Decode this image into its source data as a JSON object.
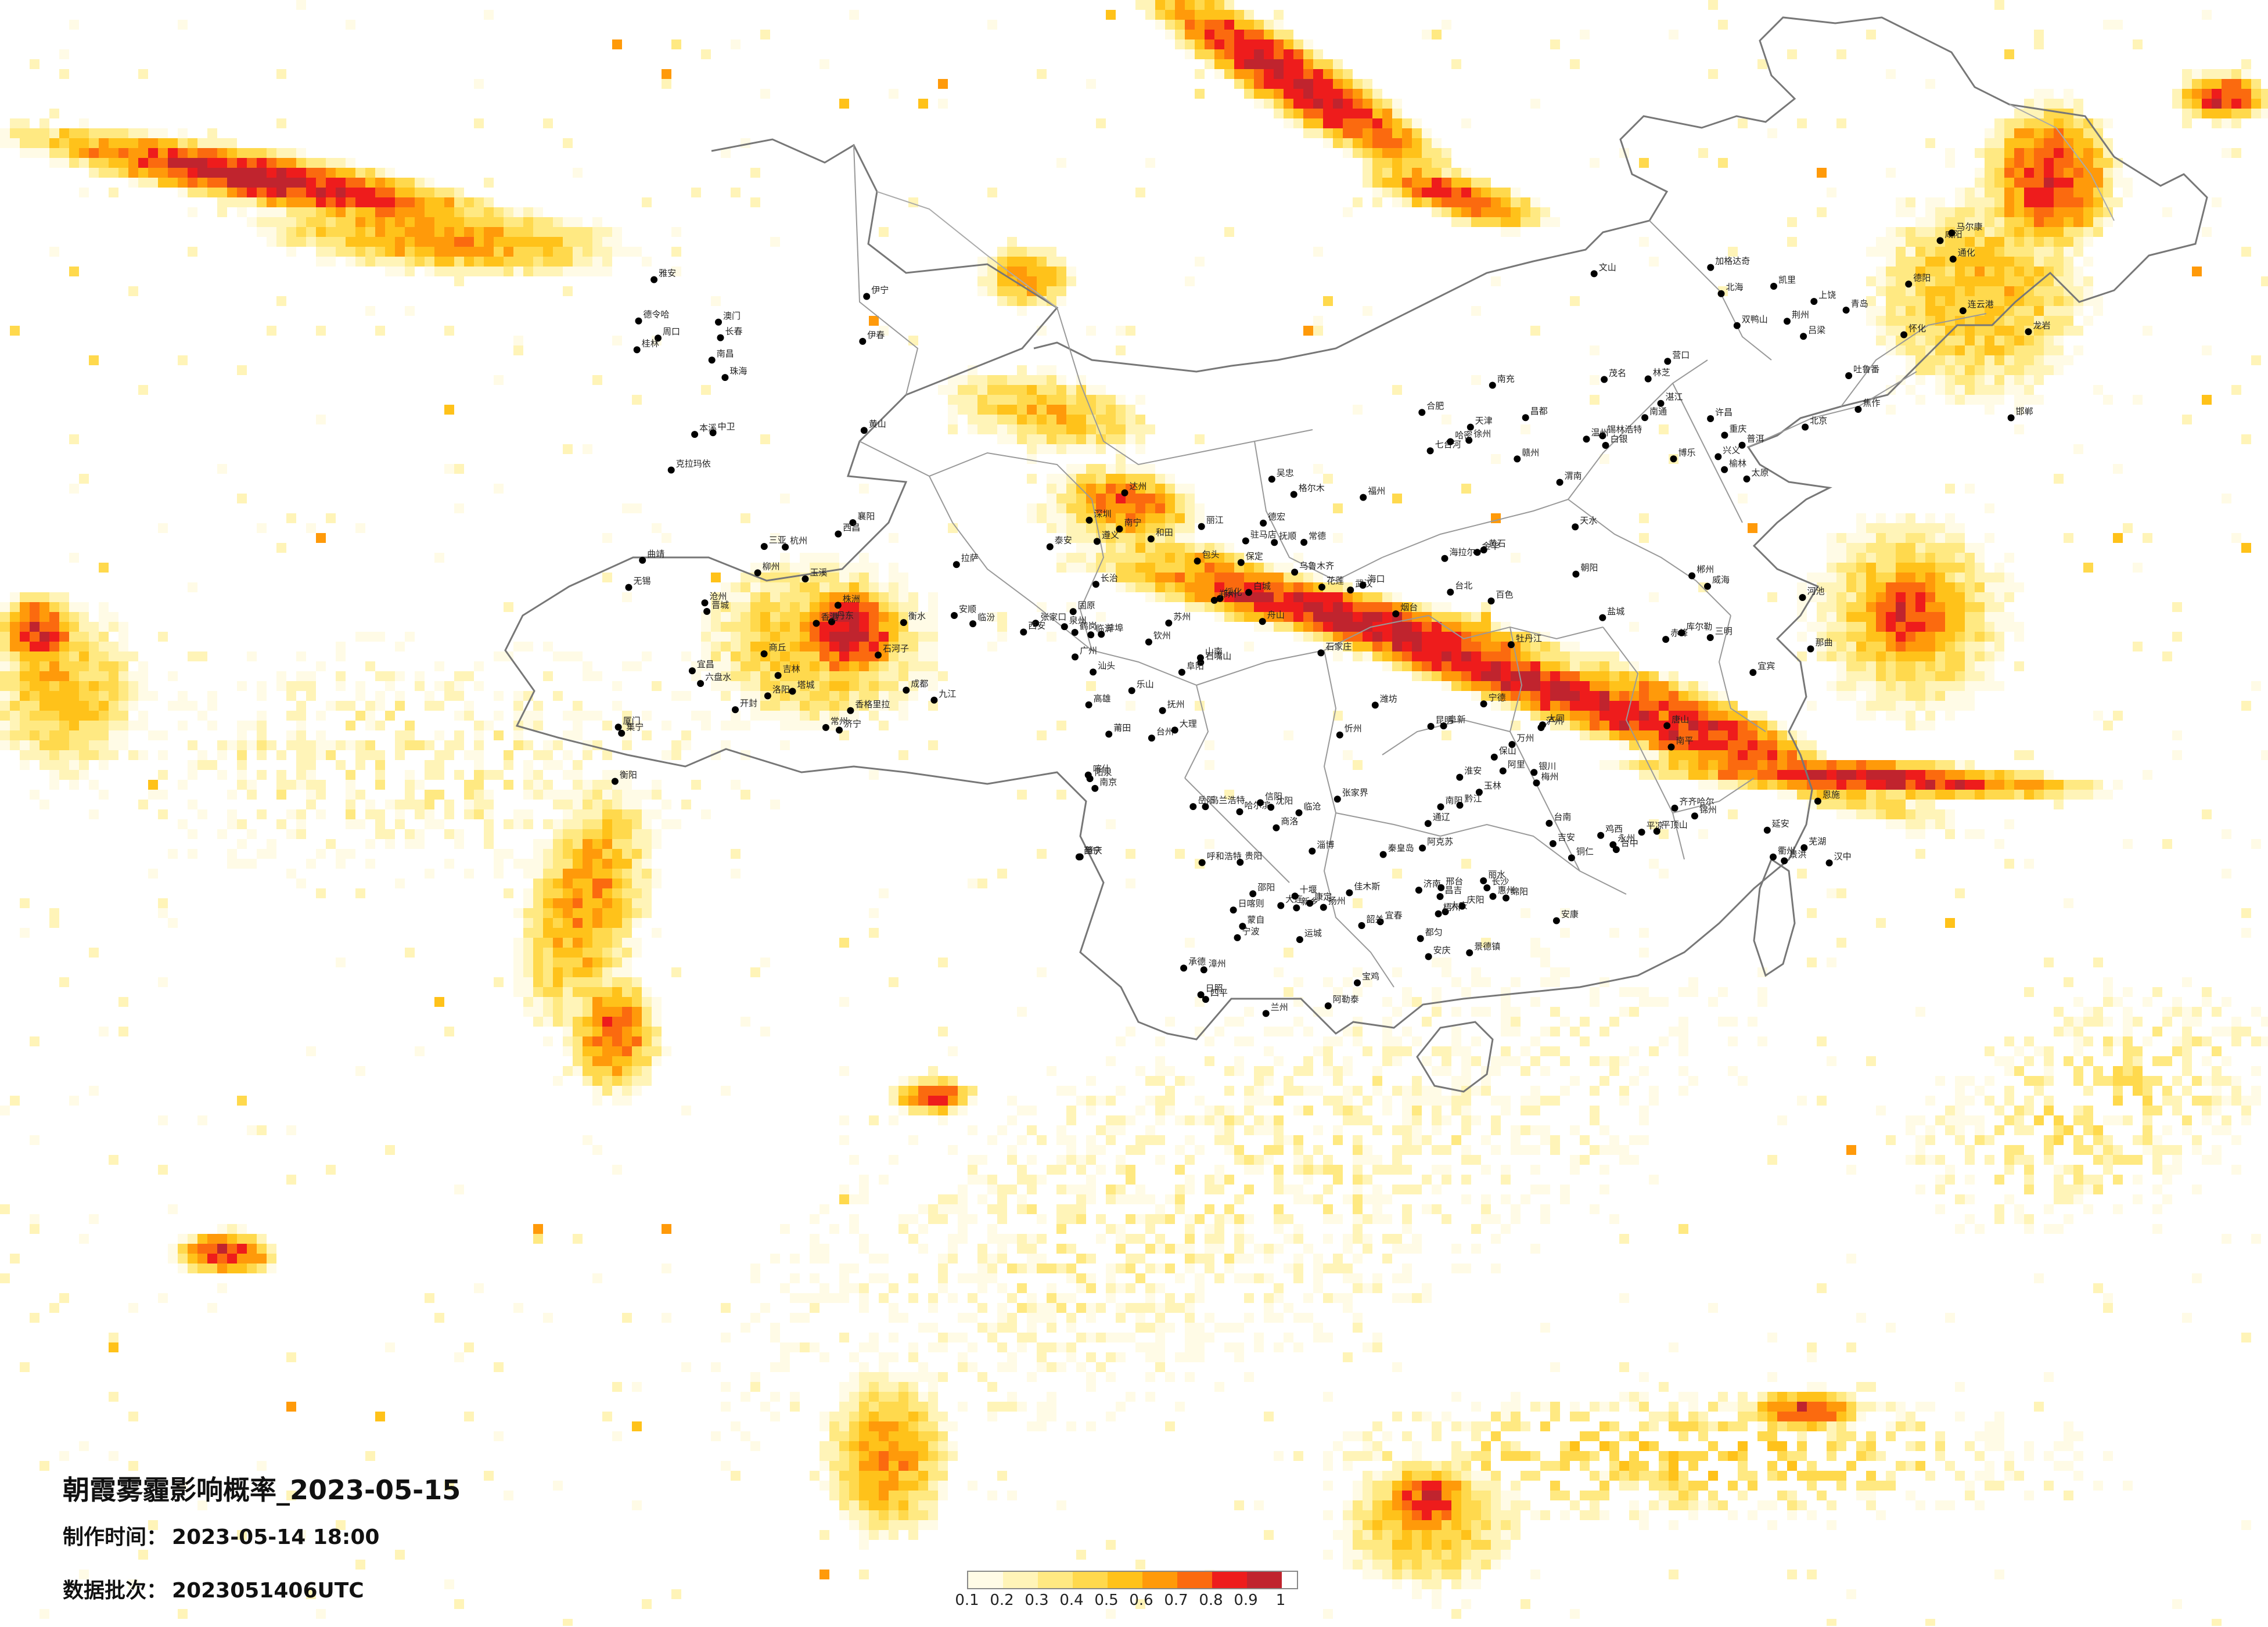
{
  "title": "朝霞雾霾影响概率_2023-05-15",
  "meta": {
    "made_label": "制作时间：",
    "made_value": "2023-05-14 18:00",
    "batch_label": "数据批次：",
    "batch_value": "2023051406UTC"
  },
  "legend": {
    "labels": [
      "0.1",
      "0.2",
      "0.3",
      "0.4",
      "0.5",
      "0.6",
      "0.7",
      "0.8",
      "0.9",
      "1"
    ],
    "colors": [
      "#fffbe6",
      "#fff4b8",
      "#ffe982",
      "#ffd94d",
      "#ffc21a",
      "#ff9a0a",
      "#fb6a0f",
      "#ee1c1c",
      "#c0242e"
    ]
  },
  "cities": [
    "加格达奇",
    "海拉尔",
    "齐齐哈尔",
    "大庆",
    "哈尔滨",
    "绥化",
    "伊春",
    "鹤岗",
    "佳木斯",
    "双鸭山",
    "七台河",
    "鸡西",
    "牡丹江",
    "乌兰浩特",
    "白城",
    "长春",
    "吉林",
    "四平",
    "通化",
    "锡林浩特",
    "赤峰",
    "通辽",
    "沈阳",
    "抚顺",
    "本溪",
    "丹东",
    "大连",
    "营口",
    "朝阳",
    "锦州",
    "阜新",
    "呼和浩特",
    "包头",
    "集宁",
    "张家口",
    "承德",
    "北京",
    "天津",
    "唐山",
    "秦皇岛",
    "石家庄",
    "保定",
    "沧州",
    "衡水",
    "邢台",
    "邯郸",
    "太原",
    "大同",
    "忻州",
    "阳泉",
    "长治",
    "晋城",
    "临汾",
    "运城",
    "吕梁",
    "榆林",
    "延安",
    "银川",
    "石嘴山",
    "吴忠",
    "中卫",
    "固原",
    "兰州",
    "白银",
    "天水",
    "平凉",
    "庆阳",
    "西宁",
    "格尔木",
    "德令哈",
    "西安",
    "宝鸡",
    "咸阳",
    "渭南",
    "汉中",
    "安康",
    "商洛",
    "郑州",
    "开封",
    "洛阳",
    "新乡",
    "焦作",
    "许昌",
    "平顶山",
    "南阳",
    "信阳",
    "驻马店",
    "周口",
    "商丘",
    "济南",
    "青岛",
    "烟台",
    "威海",
    "潍坊",
    "淄博",
    "临沂",
    "济宁",
    "泰安",
    "日照",
    "连云港",
    "徐州",
    "盐城",
    "淮安",
    "南京",
    "苏州",
    "无锡",
    "常州",
    "扬州",
    "南通",
    "合肥",
    "芜湖",
    "安庆",
    "阜阳",
    "蚌埠",
    "黄山",
    "杭州",
    "宁波",
    "温州",
    "金华",
    "衢州",
    "丽水",
    "台州",
    "舟山",
    "南昌",
    "九江",
    "景德镇",
    "上饶",
    "赣州",
    "吉安",
    "宜春",
    "抚州",
    "福州",
    "厦门",
    "泉州",
    "漳州",
    "龙岩",
    "三明",
    "南平",
    "宁德",
    "莆田",
    "武汉",
    "宜昌",
    "襄阳",
    "十堰",
    "荆州",
    "黄石",
    "恩施",
    "长沙",
    "岳阳",
    "常德",
    "衡阳",
    "株洲",
    "邵阳",
    "怀化",
    "郴州",
    "永州",
    "张家界",
    "广州",
    "深圳",
    "珠海",
    "汕头",
    "韶关",
    "湛江",
    "茂名",
    "梅州",
    "惠州",
    "肇庆",
    "南宁",
    "桂林",
    "柳州",
    "梧州",
    "北海",
    "百色",
    "河池",
    "玉林",
    "钦州",
    "海口",
    "三亚",
    "成都",
    "绵阳",
    "德阳",
    "南充",
    "宜宾",
    "泸州",
    "乐山",
    "达州",
    "雅安",
    "西昌",
    "康定",
    "马尔康",
    "重庆",
    "万州",
    "黔江",
    "贵阳",
    "遵义",
    "六盘水",
    "安顺",
    "都匀",
    "凯里",
    "兴义",
    "铜仁",
    "昆明",
    "大理",
    "丽江",
    "曲靖",
    "玉溪",
    "蒙自",
    "文山",
    "普洱",
    "景洪",
    "保山",
    "临沧",
    "德宏",
    "香格里拉",
    "拉萨",
    "日喀则",
    "林芝",
    "昌都",
    "那曲",
    "阿里",
    "山南",
    "乌鲁木齐",
    "克拉玛依",
    "石河子",
    "昌吉",
    "吐鲁番",
    "哈密",
    "库尔勒",
    "阿克苏",
    "喀什",
    "和田",
    "伊宁",
    "塔城",
    "阿勒泰",
    "博乐",
    "台北",
    "台中",
    "台南",
    "高雄",
    "花莲",
    "澳门",
    "香港"
  ]
}
